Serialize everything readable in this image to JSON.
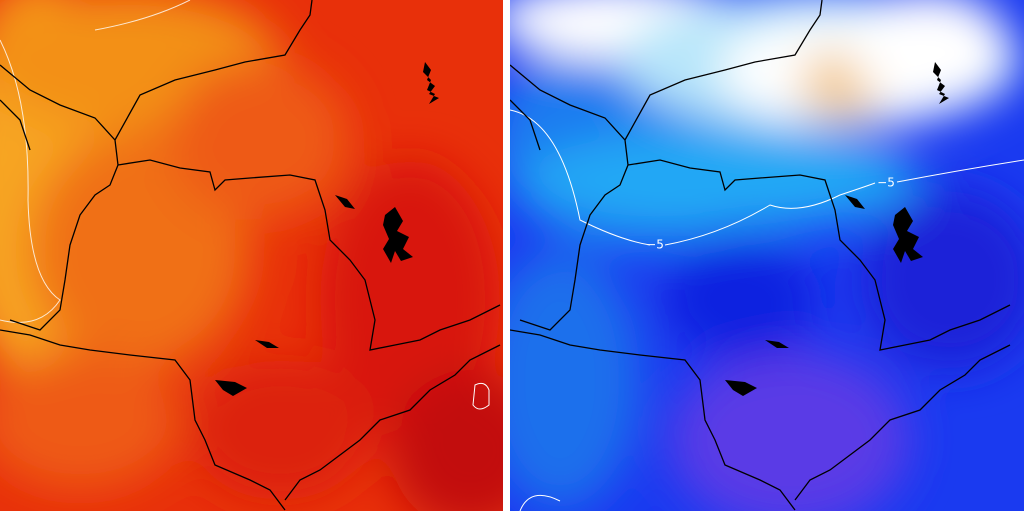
{
  "right_panel": {
    "contour_labels": [
      "−5",
      "−5"
    ]
  }
}
